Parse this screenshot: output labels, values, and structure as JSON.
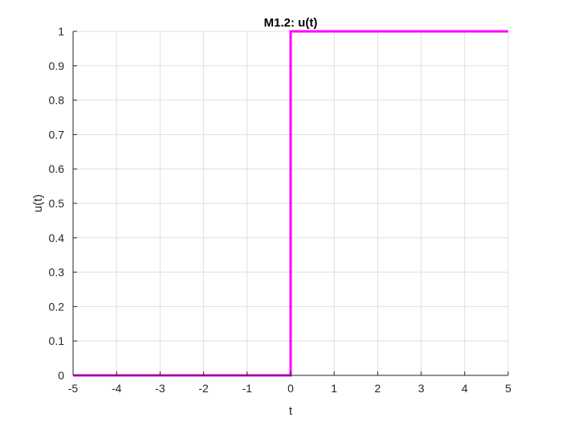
{
  "chart_data": {
    "type": "line",
    "title": "M1.2: u(t)",
    "xlabel": "t",
    "ylabel": "u(t)",
    "xlim": [
      -5,
      5
    ],
    "ylim": [
      0,
      1
    ],
    "x_ticks": [
      -5,
      -4,
      -3,
      -2,
      -1,
      0,
      1,
      2,
      3,
      4,
      5
    ],
    "y_ticks": [
      0,
      0.1,
      0.2,
      0.3,
      0.4,
      0.5,
      0.6,
      0.7,
      0.8,
      0.9,
      1
    ],
    "grid": true,
    "legend": "none",
    "series": [
      {
        "color": "#ff00ff",
        "x": [
          -5,
          0,
          0,
          5
        ],
        "y": [
          0,
          0,
          1,
          1
        ]
      }
    ]
  }
}
